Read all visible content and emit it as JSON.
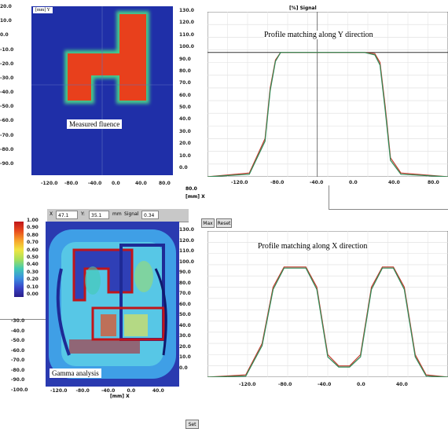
{
  "fluence_map": {
    "y_unit_label": "[mm] Y",
    "x_unit_label": "[mm] X",
    "caption": "Measured fluence",
    "y_ticks": [
      "20.0",
      "10.0",
      "0.0",
      "-10.0",
      "-20.0",
      "-30.0",
      "-40.0",
      "-50.0",
      "-60.0",
      "-70.0",
      "-80.0",
      "-90.0"
    ],
    "x_ticks": [
      "-120.0",
      "-80.0",
      "-40.0",
      "0.0",
      "40.0",
      "80.0"
    ],
    "colors": {
      "background": "#1f2fa8",
      "field": "#e8401c",
      "edge": "#47c98a"
    }
  },
  "profile_y": {
    "header_label": "[%] Signal",
    "title": "Profile matching along Y direction",
    "y_ticks": [
      "130.0",
      "120.0",
      "110.0",
      "100.0",
      "90.0",
      "80.0",
      "70.0",
      "60.0",
      "50.0",
      "40.0",
      "30.0",
      "20.0",
      "10.0",
      "0.0"
    ],
    "x_ticks": [
      "-120.0",
      "-80.0",
      "-40.0",
      "0.0",
      "40.0",
      "80.0"
    ]
  },
  "profile_x": {
    "title": "Profile matching along X direction",
    "y_ticks": [
      "130.0",
      "120.0",
      "110.0",
      "100.0",
      "90.0",
      "80.0",
      "70.0",
      "60.0",
      "50.0",
      "40.0",
      "30.0",
      "20.0",
      "10.0",
      "0.0"
    ],
    "x_ticks": [
      "-120.0",
      "-80.0",
      "-40.0",
      "0.0",
      "40.0"
    ]
  },
  "gamma_map": {
    "caption": "Gamma analysis",
    "colorbar_ticks": [
      "1.00",
      "0.90",
      "0.80",
      "0.70",
      "0.60",
      "0.50",
      "0.40",
      "0.30",
      "0.20",
      "0.10",
      "0.00"
    ],
    "y_ticks": [
      "-30.0",
      "-40.0",
      "-50.0",
      "-60.0",
      "-70.0",
      "-80.0",
      "-90.0",
      "-100.0"
    ],
    "x_ticks": [
      "-120.0",
      "-80.0",
      "-40.0",
      "0.0",
      "40.0"
    ],
    "x_unit_label": "[mm] X"
  },
  "toolbar": {
    "x_label": "X",
    "x_value": "47.1",
    "y_label": "Y:",
    "y_value": "35.1",
    "unit_label": "mm",
    "signal_label": "Signal",
    "signal_value": "0.34",
    "set_button": "Set",
    "max_button": "Max",
    "reset_button": "Reset"
  },
  "middle_axis": {
    "x_value": "80.0",
    "unit_label": "[mm] X"
  },
  "chart_data": [
    {
      "type": "line",
      "title": "Profile matching along Y direction",
      "ylim": [
        0,
        130
      ],
      "xlim": [
        -150,
        80
      ],
      "series": [
        {
          "color": "#c0392b",
          "x": [
            -150,
            -110,
            -95,
            -90,
            -85,
            -80,
            -60,
            -40,
            -20,
            0,
            10,
            15,
            20,
            25,
            35,
            80
          ],
          "y": [
            0,
            3,
            30,
            70,
            92,
            98,
            98,
            98,
            98,
            98,
            97,
            90,
            55,
            15,
            3,
            0
          ]
        },
        {
          "color": "#2e8b57",
          "x": [
            -150,
            -110,
            -95,
            -90,
            -85,
            -80,
            -60,
            -40,
            -20,
            0,
            10,
            15,
            20,
            25,
            35,
            80
          ],
          "y": [
            0,
            2,
            28,
            68,
            91,
            98,
            98,
            98,
            98,
            98,
            96,
            88,
            52,
            13,
            2,
            0
          ]
        }
      ]
    },
    {
      "type": "line",
      "title": "Profile matching along X direction",
      "ylim": [
        0,
        130
      ],
      "xlim": [
        -160,
        60
      ],
      "series": [
        {
          "color": "#c0392b",
          "x": [
            -160,
            -125,
            -110,
            -100,
            -90,
            -70,
            -60,
            -50,
            -40,
            -30,
            -20,
            -10,
            0,
            10,
            20,
            30,
            40,
            60
          ],
          "y": [
            0,
            2,
            30,
            80,
            98,
            98,
            80,
            20,
            10,
            10,
            20,
            80,
            98,
            98,
            80,
            20,
            2,
            0
          ]
        },
        {
          "color": "#2e8b57",
          "x": [
            -160,
            -125,
            -110,
            -100,
            -90,
            -70,
            -60,
            -50,
            -40,
            -30,
            -20,
            -10,
            0,
            10,
            20,
            30,
            40,
            60
          ],
          "y": [
            0,
            1,
            28,
            78,
            97,
            97,
            78,
            18,
            9,
            9,
            18,
            78,
            97,
            97,
            78,
            18,
            1,
            0
          ]
        }
      ]
    }
  ]
}
